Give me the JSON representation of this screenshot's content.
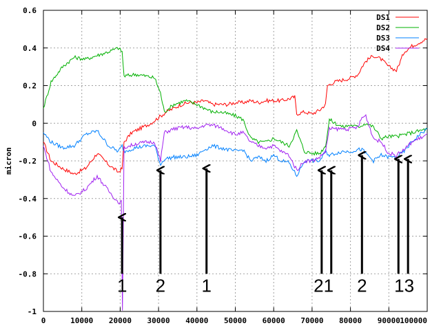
{
  "chart_data": {
    "type": "line",
    "title": "",
    "xlabel": "",
    "ylabel": "micron",
    "xlim": [
      0,
      100000
    ],
    "ylim": [
      -1,
      0.6
    ],
    "xticks": [
      0,
      10000,
      20000,
      30000,
      40000,
      50000,
      60000,
      70000,
      80000,
      90000,
      100000
    ],
    "yticks": [
      -1,
      -0.8,
      -0.6,
      -0.4,
      -0.2,
      0,
      0.2,
      0.4,
      0.6
    ],
    "xtick_labels": [
      "0",
      "10000",
      "20000",
      "30000",
      "40000",
      "50000",
      "60000",
      "70000",
      "80000",
      "90000",
      "100000"
    ],
    "ytick_labels": [
      "-1",
      "-0.8",
      "-0.6",
      "-0.4",
      "-0.2",
      "0",
      "0.2",
      "0.4",
      "0.6"
    ],
    "grid": true,
    "legend_position": "top-right",
    "series": [
      {
        "name": "DS1",
        "color": "#ff0000",
        "x": [
          0,
          2000,
          5000,
          8000,
          11000,
          14000,
          17000,
          19500,
          20500,
          21000,
          23000,
          26000,
          28000,
          30000,
          32000,
          34000,
          36000,
          38000,
          40000,
          42000,
          44000,
          46000,
          48000,
          50000,
          52000,
          54000,
          56000,
          58000,
          60000,
          62000,
          64000,
          65500,
          66000,
          68000,
          70000,
          72000,
          73500,
          74000,
          76000,
          78000,
          80000,
          82000,
          83000,
          84000,
          86000,
          88000,
          90000,
          92000,
          93000,
          94000,
          96000,
          98000,
          100000
        ],
        "y": [
          -0.1,
          -0.2,
          -0.24,
          -0.27,
          -0.24,
          -0.16,
          -0.22,
          -0.26,
          -0.24,
          -0.1,
          -0.05,
          -0.02,
          0.0,
          0.03,
          0.06,
          0.08,
          0.1,
          0.11,
          0.11,
          0.12,
          0.1,
          0.1,
          0.1,
          0.11,
          0.11,
          0.12,
          0.11,
          0.12,
          0.12,
          0.12,
          0.13,
          0.14,
          0.05,
          0.06,
          0.05,
          0.07,
          0.1,
          0.2,
          0.22,
          0.23,
          0.24,
          0.26,
          0.3,
          0.33,
          0.36,
          0.34,
          0.3,
          0.28,
          0.33,
          0.38,
          0.41,
          0.43,
          0.45
        ]
      },
      {
        "name": "DS2",
        "color": "#00b000",
        "x": [
          0,
          2000,
          5000,
          8000,
          11000,
          14000,
          17000,
          19500,
          20500,
          21000,
          24000,
          27000,
          29000,
          30500,
          31500,
          34000,
          37000,
          40000,
          42000,
          44000,
          46000,
          48000,
          50000,
          52000,
          54000,
          56000,
          58000,
          60000,
          62000,
          64000,
          66000,
          68000,
          70000,
          72000,
          73500,
          74500,
          76000,
          78000,
          80000,
          82000,
          83000,
          84000,
          86000,
          88000,
          90000,
          92000,
          94000,
          96000,
          98000,
          100000
        ],
        "y": [
          0.08,
          0.22,
          0.3,
          0.35,
          0.34,
          0.36,
          0.38,
          0.4,
          0.38,
          0.25,
          0.26,
          0.25,
          0.24,
          0.16,
          0.06,
          0.1,
          0.12,
          0.1,
          0.08,
          0.06,
          0.06,
          0.05,
          0.04,
          0.02,
          -0.08,
          -0.1,
          -0.1,
          -0.08,
          -0.1,
          -0.12,
          -0.04,
          -0.15,
          -0.16,
          -0.16,
          -0.12,
          0.02,
          0.0,
          -0.02,
          -0.01,
          -0.02,
          -0.01,
          0.0,
          -0.02,
          -0.08,
          -0.07,
          -0.07,
          -0.06,
          -0.05,
          -0.04,
          -0.03
        ]
      },
      {
        "name": "DS3",
        "color": "#0080ff",
        "x": [
          0,
          2000,
          5000,
          8000,
          11000,
          14000,
          17000,
          19500,
          20500,
          21000,
          24000,
          27000,
          29000,
          30500,
          31500,
          34000,
          37000,
          40000,
          42000,
          44000,
          46000,
          48000,
          50000,
          52000,
          54000,
          56000,
          58000,
          60000,
          62000,
          64000,
          66000,
          68000,
          70000,
          72000,
          73500,
          74500,
          76000,
          78000,
          80000,
          82000,
          83000,
          84000,
          86000,
          88000,
          90000,
          92000,
          94000,
          96000,
          98000,
          100000
        ],
        "y": [
          -0.05,
          -0.1,
          -0.13,
          -0.12,
          -0.06,
          -0.04,
          -0.12,
          -0.15,
          -0.12,
          -0.15,
          -0.13,
          -0.12,
          -0.12,
          -0.22,
          -0.19,
          -0.18,
          -0.18,
          -0.17,
          -0.14,
          -0.12,
          -0.13,
          -0.14,
          -0.15,
          -0.14,
          -0.2,
          -0.18,
          -0.2,
          -0.17,
          -0.2,
          -0.21,
          -0.28,
          -0.2,
          -0.2,
          -0.2,
          -0.15,
          -0.17,
          -0.16,
          -0.15,
          -0.15,
          -0.14,
          -0.14,
          -0.16,
          -0.2,
          -0.17,
          -0.18,
          -0.18,
          -0.15,
          -0.1,
          -0.06,
          -0.03
        ]
      },
      {
        "name": "DS4",
        "color": "#a020f0",
        "x": [
          0,
          2000,
          5000,
          8000,
          11000,
          14000,
          17000,
          19500,
          20300,
          20600,
          21000,
          24000,
          27000,
          29000,
          30500,
          31500,
          34000,
          37000,
          40000,
          42000,
          44000,
          46000,
          48000,
          50000,
          52000,
          54000,
          56000,
          58000,
          60000,
          62000,
          64000,
          66000,
          68000,
          70000,
          72000,
          73500,
          74500,
          76000,
          78000,
          80000,
          82000,
          83000,
          84000,
          86000,
          88000,
          90000,
          92000,
          94000,
          96000,
          98000,
          100000
        ],
        "y": [
          -0.12,
          -0.26,
          -0.34,
          -0.39,
          -0.35,
          -0.28,
          -0.36,
          -0.42,
          -0.42,
          -1.0,
          -0.13,
          -0.11,
          -0.1,
          -0.1,
          -0.2,
          -0.05,
          -0.03,
          -0.02,
          -0.03,
          -0.01,
          -0.01,
          -0.02,
          -0.04,
          -0.06,
          -0.05,
          -0.1,
          -0.12,
          -0.13,
          -0.12,
          -0.15,
          -0.17,
          -0.25,
          -0.2,
          -0.2,
          -0.18,
          -0.15,
          -0.03,
          -0.03,
          -0.03,
          -0.03,
          -0.02,
          0.03,
          0.04,
          -0.08,
          -0.1,
          -0.16,
          -0.17,
          -0.14,
          -0.1,
          -0.08,
          -0.06
        ]
      }
    ],
    "annotations": [
      {
        "label": "1",
        "x": 20500,
        "text_y": -0.86,
        "arrow_from_y": -0.8,
        "arrow_to_y": -0.5
      },
      {
        "label": "2",
        "x": 30500,
        "text_y": -0.86,
        "arrow_from_y": -0.8,
        "arrow_to_y": -0.25
      },
      {
        "label": "1",
        "x": 42500,
        "text_y": -0.86,
        "arrow_from_y": -0.8,
        "arrow_to_y": -0.24
      },
      {
        "label": "21",
        "x": 73000,
        "text_y": -0.86,
        "arrow_from_y": -0.8,
        "arrow_to_y": -0.25,
        "arrows_x": [
          72500,
          75000
        ]
      },
      {
        "label": "2",
        "x": 83000,
        "text_y": -0.86,
        "arrow_from_y": -0.8,
        "arrow_to_y": -0.17
      },
      {
        "label": "13",
        "x": 94000,
        "text_y": -0.86,
        "arrow_from_y": -0.8,
        "arrow_to_y": -0.19,
        "arrows_x": [
          92500,
          95000
        ]
      }
    ]
  }
}
